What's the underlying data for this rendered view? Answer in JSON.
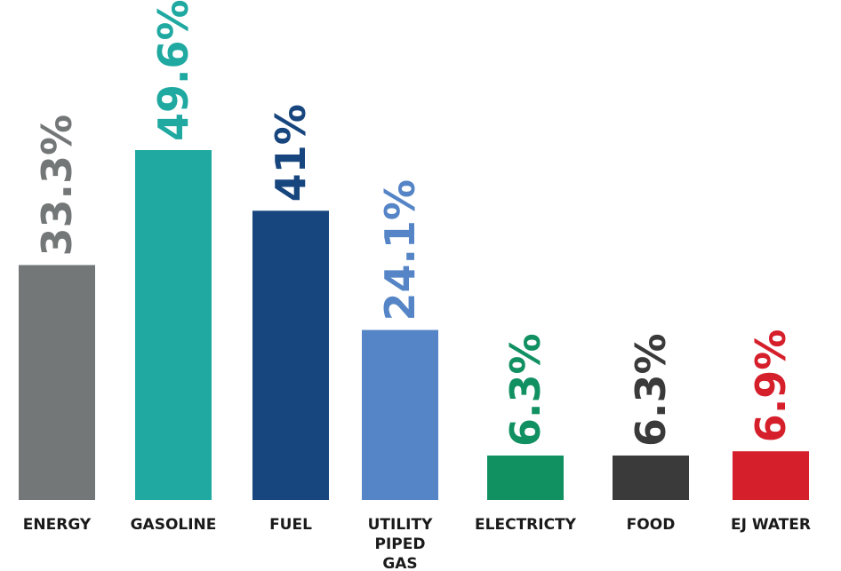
{
  "chart_data": {
    "type": "bar",
    "categories": [
      [
        "ENERGY"
      ],
      [
        "GASOLINE"
      ],
      [
        "FUEL"
      ],
      [
        "UTILITY",
        "PIPED",
        "GAS"
      ],
      [
        "ELECTRICTY"
      ],
      [
        "FOOD"
      ],
      [
        "EJ  WATER"
      ]
    ],
    "values": [
      33.3,
      49.6,
      41,
      24.1,
      6.3,
      6.3,
      6.9
    ],
    "value_labels": [
      "33.3%",
      "49.6%",
      "41%",
      "24.1%",
      "6.3%",
      "6.3%",
      "6.9%"
    ],
    "colors": [
      "#747777",
      "#1fa9a1",
      "#17457e",
      "#5585c6",
      "#119062",
      "#3a3a3a",
      "#d51f2b"
    ],
    "title": "",
    "xlabel": "",
    "ylabel": "",
    "ylim": [
      0,
      49.6
    ],
    "grid": false,
    "legend": "none"
  }
}
